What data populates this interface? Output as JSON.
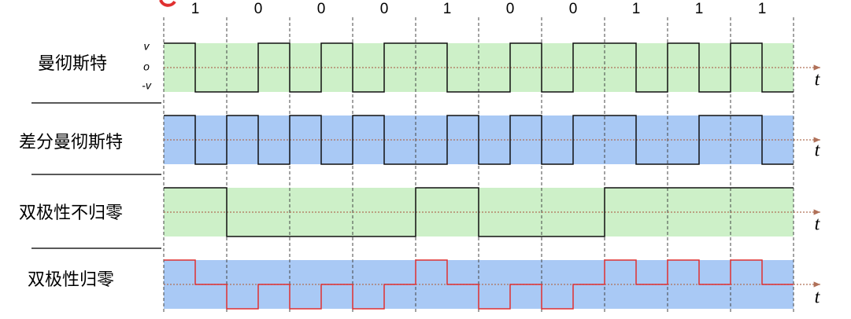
{
  "bits": [
    1,
    0,
    0,
    0,
    1,
    0,
    0,
    1,
    1,
    1
  ],
  "rows": [
    "曼彻斯特",
    "差分曼彻斯特",
    "双极性不归零",
    "双极性归零"
  ],
  "level_labels": [
    "v",
    "o",
    "-v"
  ],
  "time_label": "t"
}
